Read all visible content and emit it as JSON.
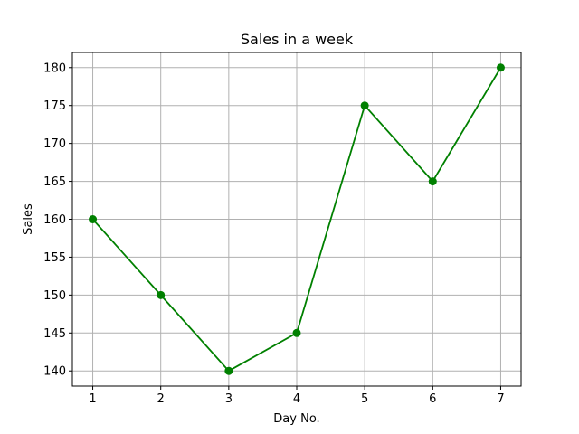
{
  "chart_data": {
    "type": "line",
    "title": "Sales in a week",
    "xlabel": "Day No.",
    "ylabel": "Sales",
    "x": [
      1,
      2,
      3,
      4,
      5,
      6,
      7
    ],
    "series": [
      {
        "values": [
          160,
          150,
          140,
          145,
          175,
          165,
          180
        ],
        "color": "#008000",
        "marker": "circle"
      }
    ],
    "xticks": [
      1,
      2,
      3,
      4,
      5,
      6,
      7
    ],
    "yticks": [
      140,
      145,
      150,
      155,
      160,
      165,
      170,
      175,
      180
    ],
    "xlim": [
      0.7,
      7.3
    ],
    "ylim": [
      138,
      182
    ],
    "grid": true
  }
}
